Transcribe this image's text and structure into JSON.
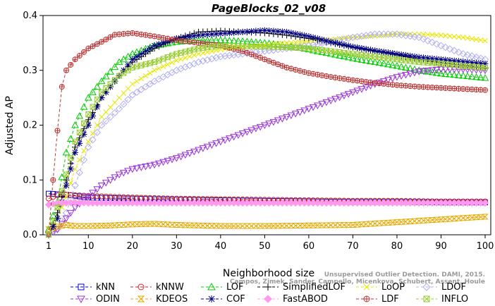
{
  "chart_data": {
    "type": "line",
    "title": "PageBlocks_02_v08",
    "xlabel": "Neighborhood size",
    "ylabel": "Adjusted AP",
    "xlim": [
      1,
      100
    ],
    "ylim": [
      0,
      0.4
    ],
    "xticks": [
      1,
      10,
      20,
      30,
      40,
      50,
      60,
      70,
      80,
      90,
      100
    ],
    "yticks": [
      0.0,
      0.1,
      0.2,
      0.3,
      0.4
    ],
    "grid": false,
    "legend_position": "bottom",
    "series": [
      {
        "name": "kNN",
        "color": "#0000cc",
        "marker": "square",
        "dash": "4,3",
        "points": [
          [
            1,
            0.075
          ],
          [
            3,
            0.074
          ],
          [
            5,
            0.073
          ],
          [
            10,
            0.068
          ],
          [
            20,
            0.066
          ],
          [
            30,
            0.064
          ],
          [
            40,
            0.063
          ],
          [
            50,
            0.062
          ],
          [
            60,
            0.061
          ],
          [
            70,
            0.06
          ],
          [
            80,
            0.06
          ],
          [
            90,
            0.059
          ],
          [
            100,
            0.059
          ]
        ]
      },
      {
        "name": "kNNW",
        "color": "#cc2222",
        "marker": "circle",
        "dash": "4,3",
        "points": [
          [
            1,
            0.066
          ],
          [
            3,
            0.072
          ],
          [
            5,
            0.073
          ],
          [
            10,
            0.071
          ],
          [
            20,
            0.068
          ],
          [
            30,
            0.066
          ],
          [
            40,
            0.065
          ],
          [
            50,
            0.064
          ],
          [
            60,
            0.063
          ],
          [
            70,
            0.062
          ],
          [
            80,
            0.062
          ],
          [
            90,
            0.061
          ],
          [
            100,
            0.061
          ]
        ]
      },
      {
        "name": "LOF",
        "color": "#00cc00",
        "marker": "triangle-up",
        "dash": "4,3",
        "points": [
          [
            1,
            0.01
          ],
          [
            3,
            0.06
          ],
          [
            5,
            0.15
          ],
          [
            7,
            0.2
          ],
          [
            10,
            0.25
          ],
          [
            13,
            0.28
          ],
          [
            17,
            0.315
          ],
          [
            20,
            0.33
          ],
          [
            25,
            0.345
          ],
          [
            30,
            0.352
          ],
          [
            35,
            0.355
          ],
          [
            40,
            0.355
          ],
          [
            45,
            0.353
          ],
          [
            50,
            0.35
          ],
          [
            55,
            0.345
          ],
          [
            60,
            0.338
          ],
          [
            65,
            0.33
          ],
          [
            70,
            0.322
          ],
          [
            75,
            0.315
          ],
          [
            80,
            0.308
          ],
          [
            85,
            0.3
          ],
          [
            90,
            0.294
          ],
          [
            95,
            0.29
          ],
          [
            100,
            0.286
          ]
        ]
      },
      {
        "name": "SimplifiedLOF",
        "color": "#000000",
        "marker": "plus",
        "dash": "4,3",
        "points": [
          [
            1,
            0.0
          ],
          [
            3,
            0.04
          ],
          [
            5,
            0.1
          ],
          [
            7,
            0.16
          ],
          [
            10,
            0.21
          ],
          [
            13,
            0.25
          ],
          [
            17,
            0.29
          ],
          [
            20,
            0.315
          ],
          [
            25,
            0.34
          ],
          [
            30,
            0.358
          ],
          [
            35,
            0.37
          ],
          [
            40,
            0.372
          ],
          [
            45,
            0.37
          ],
          [
            50,
            0.368
          ],
          [
            55,
            0.364
          ],
          [
            60,
            0.358
          ],
          [
            65,
            0.35
          ],
          [
            70,
            0.342
          ],
          [
            75,
            0.335
          ],
          [
            80,
            0.328
          ],
          [
            85,
            0.32
          ],
          [
            90,
            0.314
          ],
          [
            95,
            0.309
          ],
          [
            100,
            0.304
          ]
        ]
      },
      {
        "name": "LoOP",
        "color": "#e6e600",
        "marker": "x",
        "dash": "4,3",
        "points": [
          [
            1,
            0.0
          ],
          [
            3,
            0.03
          ],
          [
            5,
            0.07
          ],
          [
            7,
            0.12
          ],
          [
            10,
            0.17
          ],
          [
            13,
            0.215
          ],
          [
            17,
            0.25
          ],
          [
            20,
            0.275
          ],
          [
            25,
            0.3
          ],
          [
            30,
            0.318
          ],
          [
            35,
            0.33
          ],
          [
            40,
            0.338
          ],
          [
            45,
            0.343
          ],
          [
            50,
            0.346
          ],
          [
            55,
            0.35
          ],
          [
            60,
            0.352
          ],
          [
            65,
            0.356
          ],
          [
            70,
            0.36
          ],
          [
            75,
            0.363
          ],
          [
            80,
            0.366
          ],
          [
            85,
            0.366
          ],
          [
            90,
            0.364
          ],
          [
            95,
            0.36
          ],
          [
            100,
            0.354
          ]
        ]
      },
      {
        "name": "LDOF",
        "color": "#b0b0f0",
        "marker": "diamond",
        "dash": "4,3",
        "points": [
          [
            1,
            0.0
          ],
          [
            3,
            0.01
          ],
          [
            5,
            0.04
          ],
          [
            7,
            0.09
          ],
          [
            10,
            0.16
          ],
          [
            13,
            0.2
          ],
          [
            17,
            0.23
          ],
          [
            20,
            0.255
          ],
          [
            25,
            0.28
          ],
          [
            30,
            0.3
          ],
          [
            35,
            0.315
          ],
          [
            40,
            0.325
          ],
          [
            45,
            0.33
          ],
          [
            50,
            0.335
          ],
          [
            55,
            0.34
          ],
          [
            60,
            0.345
          ],
          [
            65,
            0.352
          ],
          [
            70,
            0.36
          ],
          [
            75,
            0.366
          ],
          [
            80,
            0.366
          ],
          [
            85,
            0.36
          ],
          [
            90,
            0.345
          ],
          [
            95,
            0.33
          ],
          [
            100,
            0.32
          ]
        ]
      },
      {
        "name": "ODIN",
        "color": "#9933dd",
        "marker": "triangle-down",
        "dash": "4,3",
        "points": [
          [
            1,
            0.0
          ],
          [
            3,
            0.01
          ],
          [
            5,
            0.03
          ],
          [
            7,
            0.05
          ],
          [
            10,
            0.07
          ],
          [
            13,
            0.09
          ],
          [
            17,
            0.11
          ],
          [
            20,
            0.12
          ],
          [
            25,
            0.128
          ],
          [
            30,
            0.14
          ],
          [
            35,
            0.155
          ],
          [
            40,
            0.17
          ],
          [
            45,
            0.185
          ],
          [
            50,
            0.2
          ],
          [
            55,
            0.215
          ],
          [
            60,
            0.23
          ],
          [
            65,
            0.245
          ],
          [
            70,
            0.26
          ],
          [
            75,
            0.275
          ],
          [
            80,
            0.288
          ],
          [
            85,
            0.298
          ],
          [
            90,
            0.302
          ],
          [
            95,
            0.302
          ],
          [
            100,
            0.3
          ]
        ]
      },
      {
        "name": "KDEOS",
        "color": "#e6a800",
        "marker": "hourglass",
        "dash": "4,3",
        "points": [
          [
            1,
            0.01
          ],
          [
            3,
            0.015
          ],
          [
            5,
            0.018
          ],
          [
            7,
            0.016
          ],
          [
            10,
            0.016
          ],
          [
            15,
            0.017
          ],
          [
            20,
            0.019
          ],
          [
            25,
            0.02
          ],
          [
            30,
            0.018
          ],
          [
            40,
            0.016
          ],
          [
            50,
            0.016
          ],
          [
            60,
            0.017
          ],
          [
            70,
            0.018
          ],
          [
            80,
            0.023
          ],
          [
            90,
            0.028
          ],
          [
            100,
            0.033
          ]
        ]
      },
      {
        "name": "COF",
        "color": "#000080",
        "marker": "asterisk",
        "dash": "4,3",
        "points": [
          [
            1,
            0.0
          ],
          [
            3,
            0.03
          ],
          [
            5,
            0.09
          ],
          [
            7,
            0.15
          ],
          [
            10,
            0.2
          ],
          [
            13,
            0.25
          ],
          [
            17,
            0.29
          ],
          [
            20,
            0.32
          ],
          [
            25,
            0.345
          ],
          [
            30,
            0.358
          ],
          [
            35,
            0.364
          ],
          [
            40,
            0.367
          ],
          [
            45,
            0.37
          ],
          [
            50,
            0.373
          ],
          [
            55,
            0.37
          ],
          [
            60,
            0.362
          ],
          [
            65,
            0.352
          ],
          [
            70,
            0.343
          ],
          [
            75,
            0.336
          ],
          [
            80,
            0.33
          ],
          [
            85,
            0.324
          ],
          [
            90,
            0.32
          ],
          [
            95,
            0.316
          ],
          [
            100,
            0.312
          ]
        ]
      },
      {
        "name": "FastABOD",
        "color": "#ff99ee",
        "marker": "diamond-filled",
        "dash": "4,3",
        "points": [
          [
            1,
            0.055
          ],
          [
            3,
            0.058
          ],
          [
            5,
            0.058
          ],
          [
            7,
            0.059
          ],
          [
            10,
            0.058
          ],
          [
            20,
            0.058
          ],
          [
            30,
            0.058
          ],
          [
            40,
            0.058
          ],
          [
            50,
            0.058
          ],
          [
            60,
            0.058
          ],
          [
            70,
            0.058
          ],
          [
            80,
            0.058
          ],
          [
            90,
            0.058
          ],
          [
            100,
            0.058
          ]
        ]
      },
      {
        "name": "LDF",
        "color": "#bb3333",
        "marker": "circle-plus",
        "dash": "4,3",
        "points": [
          [
            1,
            0.0
          ],
          [
            2,
            0.1
          ],
          [
            3,
            0.19
          ],
          [
            4,
            0.27
          ],
          [
            5,
            0.3
          ],
          [
            7,
            0.32
          ],
          [
            10,
            0.34
          ],
          [
            13,
            0.352
          ],
          [
            16,
            0.365
          ],
          [
            20,
            0.368
          ],
          [
            25,
            0.362
          ],
          [
            30,
            0.355
          ],
          [
            35,
            0.35
          ],
          [
            40,
            0.345
          ],
          [
            45,
            0.335
          ],
          [
            50,
            0.32
          ],
          [
            55,
            0.305
          ],
          [
            60,
            0.295
          ],
          [
            65,
            0.288
          ],
          [
            70,
            0.282
          ],
          [
            75,
            0.277
          ],
          [
            80,
            0.273
          ],
          [
            85,
            0.27
          ],
          [
            90,
            0.268
          ],
          [
            95,
            0.266
          ],
          [
            100,
            0.264
          ]
        ]
      },
      {
        "name": "INFLO",
        "color": "#99cc33",
        "marker": "box-x",
        "dash": "4,3",
        "points": [
          [
            1,
            0.0
          ],
          [
            3,
            0.05
          ],
          [
            5,
            0.11
          ],
          [
            7,
            0.17
          ],
          [
            10,
            0.22
          ],
          [
            13,
            0.26
          ],
          [
            17,
            0.29
          ],
          [
            20,
            0.305
          ],
          [
            25,
            0.315
          ],
          [
            30,
            0.33
          ],
          [
            35,
            0.34
          ],
          [
            40,
            0.345
          ],
          [
            45,
            0.344
          ],
          [
            50,
            0.343
          ],
          [
            55,
            0.342
          ],
          [
            60,
            0.34
          ],
          [
            65,
            0.335
          ],
          [
            70,
            0.33
          ],
          [
            75,
            0.325
          ],
          [
            80,
            0.32
          ],
          [
            85,
            0.315
          ],
          [
            90,
            0.312
          ],
          [
            95,
            0.308
          ],
          [
            100,
            0.305
          ]
        ]
      }
    ],
    "legend_rows": [
      [
        "kNN",
        "kNNW",
        "LOF",
        "SimplifiedLOF",
        "LoOP",
        "LDOF"
      ],
      [
        "ODIN",
        "KDEOS",
        "COF",
        "FastABOD",
        "LDF",
        "INFLO"
      ]
    ],
    "watermark": [
      "Unsupervised Outlier Detection. DAMI, 2015.",
      "Campos, Zimek, Sander, Campello, Micenkova, Schubert, Assent, Houle"
    ]
  }
}
